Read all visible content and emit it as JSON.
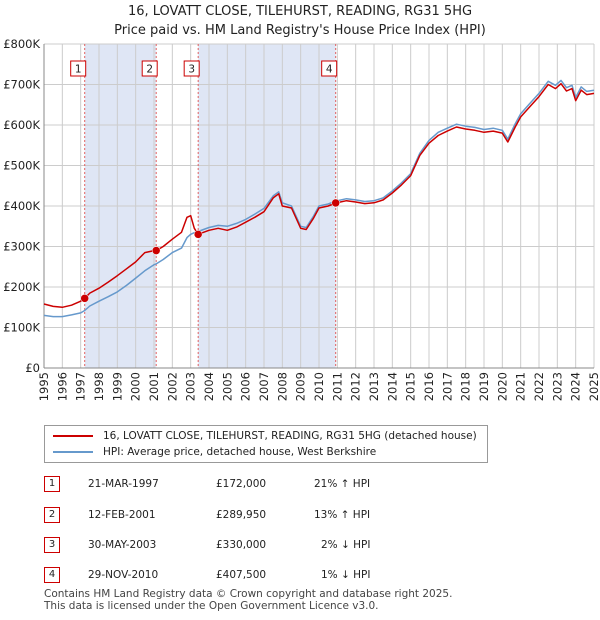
{
  "title_line1": "16, LOVATT CLOSE, TILEHURST, READING, RG31 5HG",
  "title_line2": "Price paid vs. HM Land Registry's House Price Index (HPI)",
  "chart_data": {
    "type": "line",
    "title": "16, LOVATT CLOSE, TILEHURST, READING, RG31 5HG — Price paid vs. HM Land Registry's House Price Index (HPI)",
    "xlim": [
      1995,
      2025
    ],
    "ylim": [
      0,
      800000
    ],
    "x_ticks": [
      "1995",
      "1996",
      "1997",
      "1998",
      "1999",
      "2000",
      "2001",
      "2002",
      "2003",
      "2004",
      "2005",
      "2006",
      "2007",
      "2008",
      "2009",
      "2010",
      "2011",
      "2012",
      "2013",
      "2014",
      "2015",
      "2016",
      "2017",
      "2018",
      "2019",
      "2020",
      "2021",
      "2022",
      "2023",
      "2024",
      "2025"
    ],
    "y_ticks": [
      {
        "value": 0,
        "label": "£0"
      },
      {
        "value": 100000,
        "label": "£100K"
      },
      {
        "value": 200000,
        "label": "£200K"
      },
      {
        "value": 300000,
        "label": "£300K"
      },
      {
        "value": 400000,
        "label": "£400K"
      },
      {
        "value": 500000,
        "label": "£500K"
      },
      {
        "value": 600000,
        "label": "£600K"
      },
      {
        "value": 700000,
        "label": "£700K"
      },
      {
        "value": 800000,
        "label": "£800K"
      }
    ],
    "shaded_periods": [
      [
        1997.22,
        2001.12
      ],
      [
        2003.41,
        2010.91
      ]
    ],
    "series": [
      {
        "name": "16, LOVATT CLOSE, TILEHURST, READING, RG31 5HG (detached house)",
        "color": "#cc0000",
        "x": [
          1995.0,
          1995.5,
          1996.0,
          1996.5,
          1997.0,
          1997.22,
          1997.5,
          1998.0,
          1998.5,
          1999.0,
          1999.5,
          2000.0,
          2000.5,
          2001.0,
          2001.12,
          2001.5,
          2002.0,
          2002.5,
          2002.8,
          2003.0,
          2003.2,
          2003.41,
          2003.7,
          2004.0,
          2004.5,
          2005.0,
          2005.5,
          2006.0,
          2006.5,
          2007.0,
          2007.5,
          2007.8,
          2008.0,
          2008.5,
          2009.0,
          2009.3,
          2009.7,
          2010.0,
          2010.5,
          2010.91,
          2011.5,
          2012.0,
          2012.5,
          2013.0,
          2013.5,
          2014.0,
          2014.5,
          2015.0,
          2015.5,
          2016.0,
          2016.5,
          2017.0,
          2017.5,
          2018.0,
          2018.5,
          2019.0,
          2019.5,
          2020.0,
          2020.3,
          2020.7,
          2021.0,
          2021.5,
          2022.0,
          2022.5,
          2022.9,
          2023.2,
          2023.5,
          2023.8,
          2024.0,
          2024.3,
          2024.6,
          2025.0
        ],
        "y": [
          158000,
          152000,
          150000,
          155000,
          165000,
          172000,
          185000,
          197000,
          212000,
          228000,
          245000,
          262000,
          285000,
          290000,
          289950,
          300000,
          318000,
          335000,
          372000,
          376000,
          345000,
          330000,
          335000,
          340000,
          345000,
          340000,
          348000,
          360000,
          372000,
          386000,
          420000,
          430000,
          400000,
          395000,
          345000,
          342000,
          370000,
          395000,
          400000,
          407500,
          413000,
          410000,
          406000,
          408000,
          415000,
          432000,
          452000,
          475000,
          525000,
          555000,
          574000,
          585000,
          595000,
          590000,
          587000,
          582000,
          585000,
          580000,
          558000,
          595000,
          620000,
          645000,
          670000,
          700000,
          690000,
          702000,
          684000,
          690000,
          660000,
          686000,
          675000,
          678000
        ]
      },
      {
        "name": "HPI: Average price, detached house, West Berkshire",
        "color": "#6699cc",
        "x": [
          1995.0,
          1995.5,
          1996.0,
          1996.5,
          1997.0,
          1997.22,
          1997.5,
          1998.0,
          1998.5,
          1999.0,
          1999.5,
          2000.0,
          2000.5,
          2001.0,
          2001.12,
          2001.5,
          2002.0,
          2002.5,
          2002.8,
          2003.0,
          2003.2,
          2003.41,
          2003.7,
          2004.0,
          2004.5,
          2005.0,
          2005.5,
          2006.0,
          2006.5,
          2007.0,
          2007.5,
          2007.8,
          2008.0,
          2008.5,
          2009.0,
          2009.3,
          2009.7,
          2010.0,
          2010.5,
          2010.91,
          2011.5,
          2012.0,
          2012.5,
          2013.0,
          2013.5,
          2014.0,
          2014.5,
          2015.0,
          2015.5,
          2016.0,
          2016.5,
          2017.0,
          2017.5,
          2018.0,
          2018.5,
          2019.0,
          2019.5,
          2020.0,
          2020.3,
          2020.7,
          2021.0,
          2021.5,
          2022.0,
          2022.5,
          2022.9,
          2023.2,
          2023.5,
          2023.8,
          2024.0,
          2024.3,
          2024.6,
          2025.0
        ],
        "y": [
          130000,
          127000,
          127000,
          131000,
          136000,
          142000,
          153000,
          165000,
          176000,
          188000,
          204000,
          222000,
          240000,
          255000,
          257000,
          268000,
          285000,
          296000,
          322000,
          330000,
          334000,
          337000,
          342000,
          347000,
          352000,
          350000,
          357000,
          367000,
          380000,
          394000,
          425000,
          435000,
          408000,
          400000,
          350000,
          347000,
          375000,
          400000,
          405000,
          412000,
          418000,
          415000,
          411000,
          413000,
          420000,
          437000,
          457000,
          480000,
          530000,
          562000,
          582000,
          592000,
          602000,
          597000,
          594000,
          589000,
          592000,
          587000,
          565000,
          603000,
          628000,
          653000,
          678000,
          708000,
          698000,
          710000,
          692000,
          698000,
          668000,
          694000,
          683000,
          686000
        ]
      }
    ],
    "sale_markers": [
      {
        "label": "1",
        "x": 1997.22,
        "y": 172000
      },
      {
        "label": "2",
        "x": 2001.12,
        "y": 289950
      },
      {
        "label": "3",
        "x": 2003.41,
        "y": 330000
      },
      {
        "label": "4",
        "x": 2010.91,
        "y": 407500
      }
    ]
  },
  "legend": {
    "property": "16, LOVATT CLOSE, TILEHURST, READING, RG31 5HG (detached house)",
    "hpi": "HPI: Average price, detached house, West Berkshire",
    "property_color": "#cc0000",
    "hpi_color": "#6699cc"
  },
  "sales": [
    {
      "num": "1",
      "date": "21-MAR-1997",
      "price": "£172,000",
      "hpi": "21% ↑ HPI"
    },
    {
      "num": "2",
      "date": "12-FEB-2001",
      "price": "£289,950",
      "hpi": "13% ↑ HPI"
    },
    {
      "num": "3",
      "date": "30-MAY-2003",
      "price": "£330,000",
      "hpi": "2% ↓ HPI"
    },
    {
      "num": "4",
      "date": "29-NOV-2010",
      "price": "£407,500",
      "hpi": "1% ↓ HPI"
    }
  ],
  "footer": {
    "line1": "Contains HM Land Registry data © Crown copyright and database right 2025.",
    "line2": "This data is licensed under the Open Government Licence v3.0."
  }
}
